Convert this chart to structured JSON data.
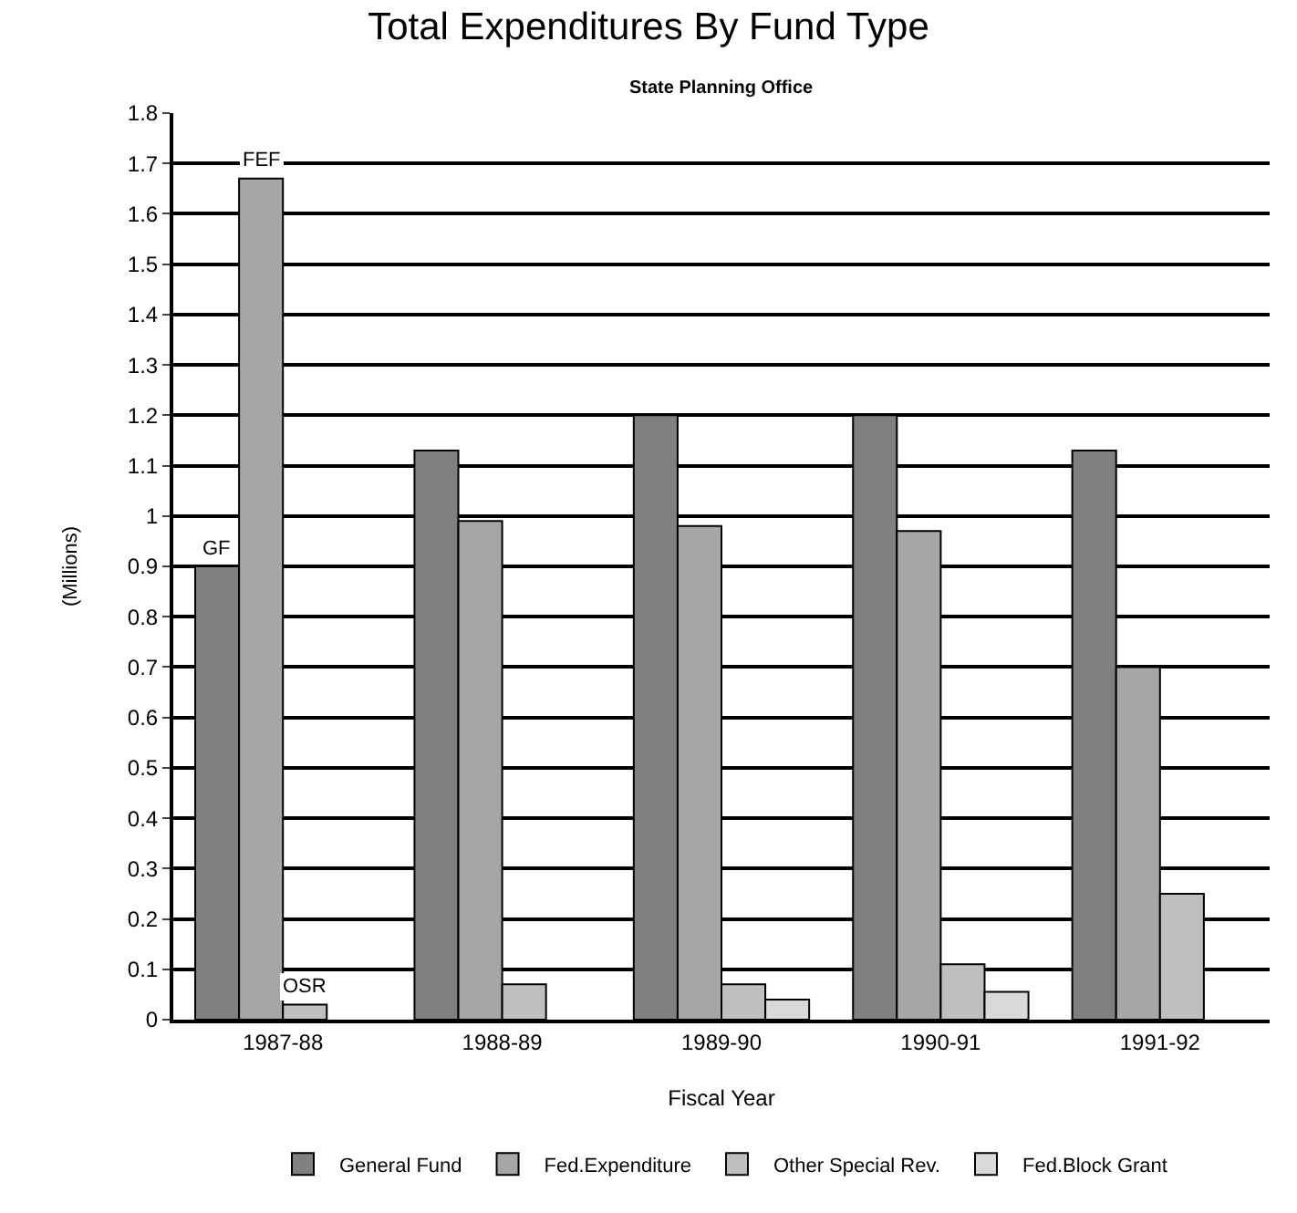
{
  "chart_data": {
    "type": "bar",
    "title": "Total Expenditures By Fund Type",
    "subtitle": "State Planning Office",
    "xlabel": "Fiscal Year",
    "ylabel": "(Millions)",
    "categories": [
      "1987-88",
      "1988-89",
      "1989-90",
      "1990-91",
      "1991-92"
    ],
    "series": [
      {
        "name": "General Fund",
        "color": "#808080",
        "values": [
          0.9,
          1.13,
          1.2,
          1.2,
          1.13
        ]
      },
      {
        "name": "Fed.Expenditure",
        "color": "#a6a6a6",
        "values": [
          1.67,
          0.99,
          0.98,
          0.97,
          0.7
        ]
      },
      {
        "name": "Other Special Rev.",
        "color": "#bfbfbf",
        "values": [
          0.03,
          0.07,
          0.07,
          0.11,
          0.25
        ]
      },
      {
        "name": "Fed.Block Grant",
        "color": "#d9d9d9",
        "values": [
          null,
          null,
          0.04,
          0.055,
          null
        ]
      }
    ],
    "annotations": [
      {
        "text": "GF",
        "x": "1987-88",
        "y": 0.9
      },
      {
        "text": "FEF",
        "x": "1987-88",
        "y": 1.67
      },
      {
        "text": "OSR",
        "x": "1987-88",
        "y": 0.03
      }
    ],
    "ylim": [
      0,
      1.8
    ],
    "yticks": [
      0,
      0.1,
      0.2,
      0.3,
      0.4,
      0.5,
      0.6,
      0.7,
      0.8,
      0.9,
      1,
      1.1,
      1.2,
      1.3,
      1.4,
      1.5,
      1.6,
      1.7,
      1.8
    ],
    "grid": "y",
    "legend": "bottom"
  }
}
